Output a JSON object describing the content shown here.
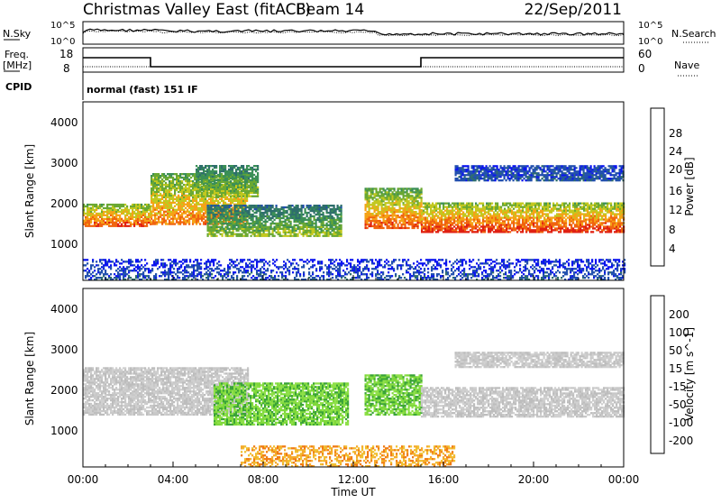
{
  "header": {
    "title": "Christmas Valley East (fitACF)",
    "beam": "Beam 14",
    "date": "22/Sep/2011"
  },
  "noise_panel": {
    "left_label": "N.Sky",
    "left_ticks": [
      "10^5",
      "10^0"
    ],
    "right_ticks": [
      "10^5",
      "10^0"
    ],
    "right_label": "N.Search"
  },
  "freq_panel": {
    "left_label_1": "Freq.",
    "left_label_2": "[MHz]",
    "left_ticks": [
      "18",
      "8"
    ],
    "right_ticks": [
      "60",
      "0"
    ],
    "right_label": "Nave"
  },
  "cpid_panel": {
    "label": "CPID",
    "value": "normal (fast) 151 IF"
  },
  "colors": {
    "power_scale": [
      "#0a14f0",
      "#214fae",
      "#2e6e6c",
      "#3b8f57",
      "#6aa833",
      "#c2c81e",
      "#f5a216",
      "#f0640f",
      "#e02012"
    ],
    "velocity_scale": [
      "#1a2fd8",
      "#2a6a7a",
      "#3aa338",
      "#7ed83a",
      "#c8c8c8",
      "#c8c8c8",
      "#f5a92a",
      "#f07a12",
      "#f02020"
    ]
  },
  "chart_data": [
    {
      "type": "heatmap",
      "name": "power",
      "ylabel": "Slant Range [km]",
      "ylim": [
        0,
        4500
      ],
      "xlim_hours": [
        0,
        24
      ],
      "yticks": [
        "1000",
        "2000",
        "3000",
        "4000"
      ],
      "colorbar": {
        "label": "Power [dB]",
        "ticks": [
          "4",
          "8",
          "12",
          "16",
          "20",
          "24",
          "28"
        ],
        "range": [
          0,
          32
        ]
      },
      "echo_bands": [
        {
          "t0": 0.0,
          "t1": 3.0,
          "r0": 1350,
          "r1": 1900,
          "v0": 28,
          "v1": 16
        },
        {
          "t0": 3.0,
          "t1": 7.3,
          "r0": 1400,
          "r1": 2700,
          "v0": 26,
          "v1": 14
        },
        {
          "t0": 5.0,
          "t1": 7.8,
          "r0": 2100,
          "r1": 2900,
          "v0": 18,
          "v1": 10
        },
        {
          "t0": 5.5,
          "t1": 11.5,
          "r0": 1100,
          "r1": 1900,
          "v0": 18,
          "v1": 8
        },
        {
          "t0": 12.5,
          "t1": 15.0,
          "r0": 1300,
          "r1": 2300,
          "v0": 28,
          "v1": 14
        },
        {
          "t0": 15.0,
          "t1": 24.0,
          "r0": 1200,
          "r1": 1950,
          "v0": 30,
          "v1": 16
        },
        {
          "t0": 16.5,
          "t1": 24.0,
          "r0": 2500,
          "r1": 2900,
          "v0": 6,
          "v1": 4
        },
        {
          "t0": 0.0,
          "t1": 24.0,
          "r0": 0,
          "r1": 500,
          "v0": 6,
          "v1": 2
        }
      ]
    },
    {
      "type": "heatmap",
      "name": "velocity",
      "ylabel": "Slant Range [km]",
      "ylim": [
        0,
        4500
      ],
      "xlim_hours": [
        0,
        24
      ],
      "yticks": [
        "1000",
        "2000",
        "3000",
        "4000"
      ],
      "colorbar": {
        "label": "Velocity [m s^-1]",
        "ticks": [
          "200",
          "100",
          "50",
          "15",
          "-15",
          "-50",
          "-100",
          "-200"
        ]
      },
      "xticks": [
        "00:00",
        "04:00",
        "08:00",
        "12:00",
        "16:00",
        "20:00",
        "00:00"
      ],
      "xlabel": "Time UT",
      "echo_bands": [
        {
          "t0": 0.0,
          "t1": 7.3,
          "r0": 1300,
          "r1": 2500,
          "class": "ground"
        },
        {
          "t0": 5.8,
          "t1": 11.8,
          "r0": 1050,
          "r1": 2100,
          "class": "positive"
        },
        {
          "t0": 12.5,
          "t1": 15.0,
          "r0": 1300,
          "r1": 2300,
          "class": "positive"
        },
        {
          "t0": 15.0,
          "t1": 24.0,
          "r0": 1250,
          "r1": 2000,
          "class": "ground"
        },
        {
          "t0": 16.5,
          "t1": 24.0,
          "r0": 2500,
          "r1": 2900,
          "class": "ground"
        },
        {
          "t0": 7.0,
          "t1": 16.5,
          "r0": 0,
          "r1": 500,
          "class": "negative"
        }
      ]
    }
  ]
}
